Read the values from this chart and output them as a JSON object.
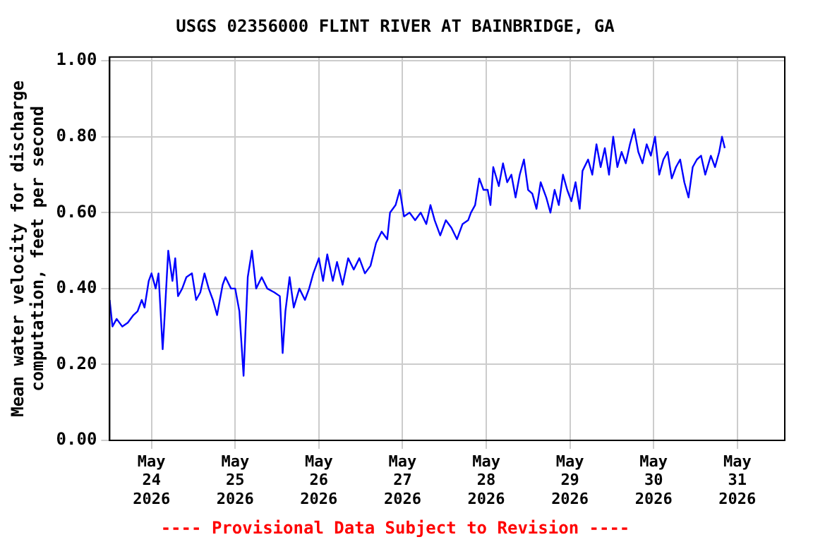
{
  "chart_data": {
    "type": "line",
    "title": "USGS 02356000 FLINT RIVER AT BAINBRIDGE, GA",
    "ylabel": "Mean water velocity for discharge\ncomputation, feet per second",
    "annotations": [
      "---- Provisional Data Subject to Revision ----"
    ],
    "xlim": [
      "2026-05-23T12:00",
      "2026-05-31T13:36"
    ],
    "xticks": [
      {
        "value": "2026-05-24",
        "label": "May 24 2026"
      },
      {
        "value": "2026-05-25",
        "label": "May 25 2026"
      },
      {
        "value": "2026-05-26",
        "label": "May 26 2026"
      },
      {
        "value": "2026-05-27",
        "label": "May 27 2026"
      },
      {
        "value": "2026-05-28",
        "label": "May 28 2026"
      },
      {
        "value": "2026-05-29",
        "label": "May 29 2026"
      },
      {
        "value": "2026-05-30",
        "label": "May 30 2026"
      },
      {
        "value": "2026-05-31",
        "label": "May 31 2026"
      }
    ],
    "ylim": [
      0,
      1.01
    ],
    "yticks": [
      {
        "value": 0,
        "label": "0.00"
      },
      {
        "value": 0.2,
        "label": "0.20"
      },
      {
        "value": 0.4,
        "label": "0.40"
      },
      {
        "value": 0.6,
        "label": "0.60"
      },
      {
        "value": 0.8,
        "label": "0.80"
      },
      {
        "value": 1,
        "label": "1.00"
      }
    ],
    "grid": true,
    "legend": false,
    "marker": "none",
    "line_style": "solid",
    "series": [
      {
        "color": "#0000ff",
        "x": [
          "2026-05-23T12:00",
          "2026-05-23T12:48",
          "2026-05-23T14:00",
          "2026-05-23T15:36",
          "2026-05-23T17:12",
          "2026-05-23T18:48",
          "2026-05-23T20:00",
          "2026-05-23T21:12",
          "2026-05-23T22:00",
          "2026-05-23T23:12",
          "2026-05-24T00:00",
          "2026-05-24T01:12",
          "2026-05-24T02:00",
          "2026-05-24T03:12",
          "2026-05-24T03:36",
          "2026-05-24T04:48",
          "2026-05-24T06:00",
          "2026-05-24T06:48",
          "2026-05-24T07:36",
          "2026-05-24T08:48",
          "2026-05-24T10:00",
          "2026-05-24T11:36",
          "2026-05-24T12:48",
          "2026-05-24T14:00",
          "2026-05-24T15:12",
          "2026-05-24T16:24",
          "2026-05-24T17:36",
          "2026-05-24T18:48",
          "2026-05-24T20:24",
          "2026-05-24T21:12",
          "2026-05-24T22:48",
          "2026-05-25T00:00",
          "2026-05-25T01:12",
          "2026-05-25T02:24",
          "2026-05-25T03:36",
          "2026-05-25T04:48",
          "2026-05-25T06:00",
          "2026-05-25T07:36",
          "2026-05-25T09:12",
          "2026-05-25T11:12",
          "2026-05-25T12:48",
          "2026-05-25T13:36",
          "2026-05-25T14:24",
          "2026-05-25T15:36",
          "2026-05-25T16:48",
          "2026-05-25T18:24",
          "2026-05-25T20:00",
          "2026-05-25T21:12",
          "2026-05-25T22:24",
          "2026-05-26T00:00",
          "2026-05-26T01:12",
          "2026-05-26T02:24",
          "2026-05-26T04:00",
          "2026-05-26T05:12",
          "2026-05-26T06:48",
          "2026-05-26T08:24",
          "2026-05-26T10:00",
          "2026-05-26T11:36",
          "2026-05-26T13:12",
          "2026-05-26T14:48",
          "2026-05-26T16:24",
          "2026-05-26T18:00",
          "2026-05-26T19:36",
          "2026-05-26T20:24",
          "2026-05-26T22:00",
          "2026-05-26T23:12",
          "2026-05-27T00:24",
          "2026-05-27T02:00",
          "2026-05-27T03:36",
          "2026-05-27T05:12",
          "2026-05-27T06:48",
          "2026-05-27T08:00",
          "2026-05-27T09:12",
          "2026-05-27T10:48",
          "2026-05-27T12:24",
          "2026-05-27T14:00",
          "2026-05-27T15:36",
          "2026-05-27T17:12",
          "2026-05-27T18:48",
          "2026-05-27T19:36",
          "2026-05-27T20:48",
          "2026-05-27T22:00",
          "2026-05-27T23:12",
          "2026-05-28T00:24",
          "2026-05-28T01:12",
          "2026-05-28T02:00",
          "2026-05-28T03:36",
          "2026-05-28T04:48",
          "2026-05-28T06:00",
          "2026-05-28T07:12",
          "2026-05-28T08:24",
          "2026-05-28T09:36",
          "2026-05-28T10:48",
          "2026-05-28T12:00",
          "2026-05-28T13:12",
          "2026-05-28T14:24",
          "2026-05-28T15:36",
          "2026-05-28T17:12",
          "2026-05-28T18:24",
          "2026-05-28T19:36",
          "2026-05-28T20:48",
          "2026-05-28T22:00",
          "2026-05-28T23:12",
          "2026-05-29T00:24",
          "2026-05-29T01:36",
          "2026-05-29T02:48",
          "2026-05-29T03:36",
          "2026-05-29T05:12",
          "2026-05-29T06:24",
          "2026-05-29T07:36",
          "2026-05-29T08:48",
          "2026-05-29T10:00",
          "2026-05-29T11:12",
          "2026-05-29T12:24",
          "2026-05-29T13:36",
          "2026-05-29T14:48",
          "2026-05-29T16:00",
          "2026-05-29T17:12",
          "2026-05-29T18:24",
          "2026-05-29T19:36",
          "2026-05-29T20:48",
          "2026-05-29T22:00",
          "2026-05-29T23:12",
          "2026-05-30T00:24",
          "2026-05-30T01:36",
          "2026-05-30T02:48",
          "2026-05-30T04:00",
          "2026-05-30T05:12",
          "2026-05-30T06:24",
          "2026-05-30T07:36",
          "2026-05-30T08:48",
          "2026-05-30T10:00",
          "2026-05-30T11:12",
          "2026-05-30T12:24",
          "2026-05-30T13:36",
          "2026-05-30T14:48",
          "2026-05-30T16:24",
          "2026-05-30T17:36",
          "2026-05-30T18:48",
          "2026-05-30T19:36",
          "2026-05-30T20:24"
        ],
        "values": [
          0.37,
          0.3,
          0.32,
          0.3,
          0.31,
          0.33,
          0.34,
          0.37,
          0.35,
          0.42,
          0.44,
          0.4,
          0.44,
          0.24,
          0.3,
          0.5,
          0.42,
          0.48,
          0.38,
          0.4,
          0.43,
          0.44,
          0.37,
          0.39,
          0.44,
          0.4,
          0.37,
          0.33,
          0.41,
          0.43,
          0.4,
          0.4,
          0.34,
          0.17,
          0.43,
          0.5,
          0.4,
          0.43,
          0.4,
          0.39,
          0.38,
          0.23,
          0.34,
          0.43,
          0.35,
          0.4,
          0.37,
          0.4,
          0.44,
          0.48,
          0.42,
          0.49,
          0.42,
          0.47,
          0.41,
          0.48,
          0.45,
          0.48,
          0.44,
          0.46,
          0.52,
          0.55,
          0.53,
          0.6,
          0.62,
          0.66,
          0.59,
          0.6,
          0.58,
          0.6,
          0.57,
          0.62,
          0.58,
          0.54,
          0.58,
          0.56,
          0.53,
          0.57,
          0.58,
          0.6,
          0.62,
          0.69,
          0.66,
          0.66,
          0.62,
          0.72,
          0.67,
          0.73,
          0.68,
          0.7,
          0.64,
          0.7,
          0.74,
          0.66,
          0.65,
          0.61,
          0.68,
          0.64,
          0.6,
          0.66,
          0.62,
          0.7,
          0.66,
          0.63,
          0.68,
          0.61,
          0.71,
          0.74,
          0.7,
          0.78,
          0.72,
          0.77,
          0.7,
          0.8,
          0.72,
          0.76,
          0.73,
          0.78,
          0.82,
          0.76,
          0.73,
          0.78,
          0.75,
          0.8,
          0.7,
          0.74,
          0.76,
          0.69,
          0.72,
          0.74,
          0.68,
          0.64,
          0.72,
          0.74,
          0.75,
          0.7,
          0.75,
          0.72,
          0.76,
          0.8,
          0.77
        ]
      }
    ]
  }
}
